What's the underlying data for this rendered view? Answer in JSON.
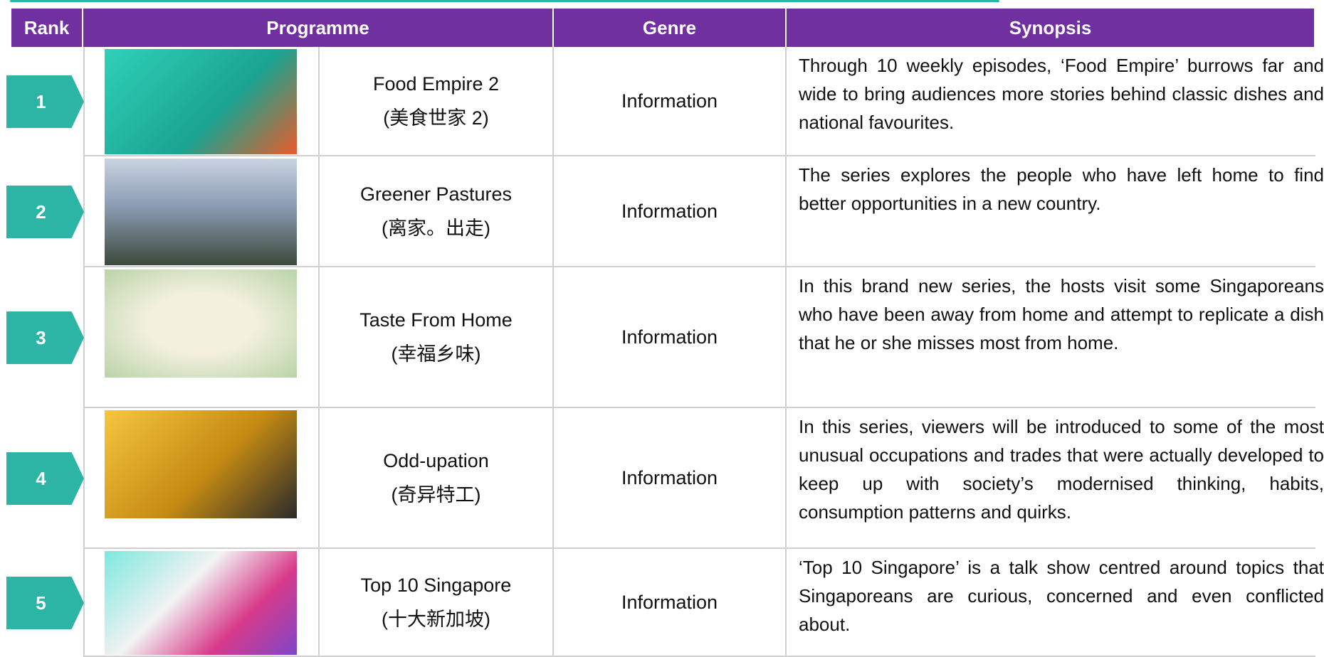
{
  "table": {
    "headers": [
      "Rank",
      "Programme",
      "Genre",
      "Synopsis"
    ],
    "rows": [
      {
        "rank": "1",
        "title": "Food Empire 2",
        "chinese_title": "(美食世家 2)",
        "genre": "Information",
        "synopsis": "Through 10 weekly episodes, ‘Food Empire’ burrows far and wide to bring audiences more stories behind classic dishes and national favourites."
      },
      {
        "rank": "2",
        "title": "Greener Pastures",
        "chinese_title": "(离家。出走)",
        "genre": "Information",
        "synopsis": "The series explores the people who have left home to find better opportunities in a new country."
      },
      {
        "rank": "3",
        "title": "Taste From Home",
        "chinese_title": "(幸福乡味)",
        "genre": "Information",
        "synopsis": "In this brand new series, the hosts visit some Singaporeans who have been away from home and attempt to replicate a dish that he or she misses most from home."
      },
      {
        "rank": "4",
        "title": "Odd-upation",
        "chinese_title": "(奇异特工)",
        "genre": "Information",
        "synopsis": "In this series, viewers will be introduced to some of the most unusual occupations and trades that were actually developed to keep up with society’s modernised thinking, habits, consumption patterns and quirks."
      },
      {
        "rank": "5",
        "title": "Top 10 Singapore",
        "chinese_title": "(十大新加坡)",
        "genre": "Information",
        "synopsis": "‘Top 10 Singapore’ is a talk show centred around topics that Singaporeans are curious, concerned and even conflicted about."
      }
    ]
  }
}
